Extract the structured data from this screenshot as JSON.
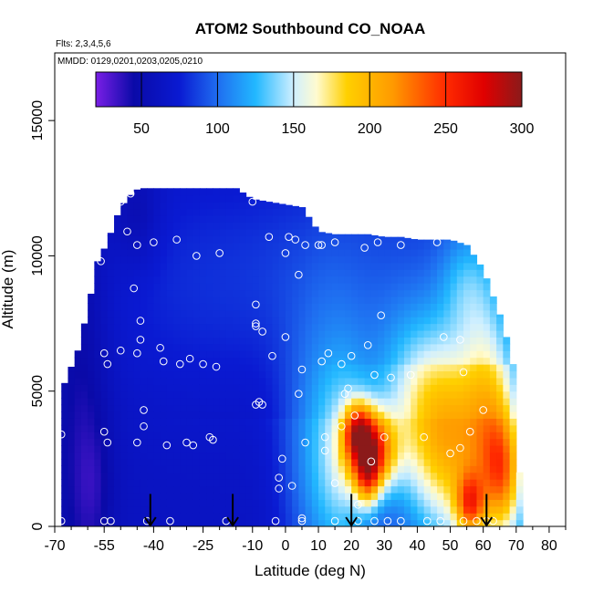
{
  "chart_data": {
    "type": "heatmap",
    "title": "ATOM2 Southbound CO_NOAA",
    "annotations": [
      "Flts: 2,3,4,5,6",
      "MMDD: 0129,0201,0203,0205,0210"
    ],
    "xlabel": "Latitude (deg N)",
    "ylabel": "Altitude (m)",
    "xlim": [
      -70,
      85
    ],
    "ylim": [
      0,
      17500
    ],
    "x_ticks": [
      -70,
      -55,
      -40,
      -25,
      -10,
      0,
      10,
      20,
      30,
      40,
      50,
      60,
      70,
      80
    ],
    "x_tick_labels": [
      "-70",
      "-55",
      "-40",
      "-25",
      "-10",
      "0",
      "10",
      "20",
      "30",
      "40",
      "50",
      "60",
      "70",
      "80"
    ],
    "x_minor_ticks": [
      -65,
      -60,
      -50,
      -45,
      -35,
      -30,
      -20,
      -15,
      -5,
      5,
      15,
      25,
      35,
      45,
      55,
      65,
      75,
      85
    ],
    "y_ticks": [
      0,
      5000,
      10000,
      15000
    ],
    "y_tick_labels": [
      "0",
      "5000",
      "10000",
      "15000"
    ],
    "colorbar": {
      "min": 20,
      "max": 300,
      "ticks": [
        50,
        100,
        150,
        200,
        250,
        300
      ],
      "tick_labels": [
        "50",
        "100",
        "150",
        "200",
        "250",
        "300"
      ],
      "colors": [
        [
          20,
          "#7a1fe6"
        ],
        [
          45,
          "#0a0aa8"
        ],
        [
          75,
          "#0a1ad2"
        ],
        [
          100,
          "#1f6df0"
        ],
        [
          125,
          "#22b8ff"
        ],
        [
          150,
          "#cfefff"
        ],
        [
          165,
          "#fffbd0"
        ],
        [
          185,
          "#ffd000"
        ],
        [
          215,
          "#ff9a00"
        ],
        [
          250,
          "#ff2a00"
        ],
        [
          275,
          "#e00000"
        ],
        [
          300,
          "#8b1a1a"
        ]
      ]
    },
    "coverage": {
      "top_lat": [
        -68,
        -63,
        -60,
        -57,
        -54,
        -52,
        -50,
        -48,
        -46,
        -44,
        -40,
        -36,
        -30,
        -25,
        -20,
        -15,
        -10,
        -5,
        0,
        5,
        10,
        15,
        20,
        25,
        30,
        35,
        40,
        45,
        50,
        55,
        60,
        63,
        66,
        69,
        70,
        72
      ],
      "top_alt": [
        5000,
        6500,
        8000,
        9800,
        10500,
        11200,
        11800,
        12100,
        12400,
        12500,
        12500,
        12500,
        12500,
        12500,
        12500,
        12500,
        12100,
        12000,
        11900,
        11800,
        10900,
        10800,
        10800,
        10800,
        10700,
        10700,
        10600,
        10600,
        10600,
        10400,
        9500,
        8500,
        7500,
        6000,
        3000,
        1000
      ],
      "bottom_alt": 0
    },
    "features": [
      {
        "lat": -62,
        "alt": 5000,
        "sx": 6,
        "sy": 6000,
        "v": -20
      },
      {
        "lat": -58,
        "alt": 1500,
        "sx": 4,
        "sy": 1800,
        "v": -12
      },
      {
        "lat": -45,
        "alt": 11500,
        "sx": 5,
        "sy": 1400,
        "v": -18
      },
      {
        "lat": -30,
        "alt": 9000,
        "sx": 25,
        "sy": 3500,
        "v": 18
      },
      {
        "lat": 15,
        "alt": 9500,
        "sx": 20,
        "sy": 3000,
        "v": 20
      },
      {
        "lat": 8,
        "alt": 2500,
        "sx": 7,
        "sy": 3500,
        "v": 40
      },
      {
        "lat": 18,
        "alt": 2500,
        "sx": 6,
        "sy": 3000,
        "v": 55
      },
      {
        "lat": 26,
        "alt": 2800,
        "sx": 5,
        "sy": 1000,
        "v": 150
      },
      {
        "lat": 22,
        "alt": 3600,
        "sx": 3,
        "sy": 700,
        "v": 90
      },
      {
        "lat": 25,
        "alt": 1800,
        "sx": 2.5,
        "sy": 800,
        "v": 70
      },
      {
        "lat": 40,
        "alt": 4500,
        "sx": 10,
        "sy": 2500,
        "v": 65
      },
      {
        "lat": 50,
        "alt": 3000,
        "sx": 8,
        "sy": 2500,
        "v": 75
      },
      {
        "lat": 56,
        "alt": 800,
        "sx": 3,
        "sy": 800,
        "v": 90
      },
      {
        "lat": 62,
        "alt": 4000,
        "sx": 6,
        "sy": 3000,
        "v": 80
      },
      {
        "lat": 66,
        "alt": 2000,
        "sx": 4,
        "sy": 1500,
        "v": 80
      },
      {
        "lat": 55,
        "alt": 9000,
        "sx": 6,
        "sy": 1500,
        "v": 35
      }
    ],
    "obs_points": [
      [
        -68,
        5800
      ],
      [
        -68,
        3400
      ],
      [
        -68,
        200
      ],
      [
        -57,
        11600
      ],
      [
        -56,
        9800
      ],
      [
        -55,
        6400
      ],
      [
        -54,
        6000
      ],
      [
        -55,
        3500
      ],
      [
        -54,
        3100
      ],
      [
        -55,
        200
      ],
      [
        -53,
        200
      ],
      [
        -50,
        12000
      ],
      [
        -47,
        12300
      ],
      [
        -45,
        6400
      ],
      [
        -46,
        8800
      ],
      [
        -45,
        10400
      ],
      [
        -44,
        7600
      ],
      [
        -44,
        6900
      ],
      [
        -45,
        3100
      ],
      [
        -43,
        4300
      ],
      [
        -43,
        3700
      ],
      [
        -42,
        200
      ],
      [
        -50,
        6500
      ],
      [
        -48,
        10900
      ],
      [
        -40,
        10500
      ],
      [
        -38,
        6600
      ],
      [
        -37,
        6100
      ],
      [
        -36,
        3000
      ],
      [
        -35,
        200
      ],
      [
        -33,
        10600
      ],
      [
        -32,
        6000
      ],
      [
        -30,
        3100
      ],
      [
        -29,
        6200
      ],
      [
        -28,
        3000
      ],
      [
        -27,
        10000
      ],
      [
        -25,
        6000
      ],
      [
        -23,
        3300
      ],
      [
        -22,
        3200
      ],
      [
        -21,
        5900
      ],
      [
        -20,
        10100
      ],
      [
        -18,
        200
      ],
      [
        -10,
        12000
      ],
      [
        -9,
        7500
      ],
      [
        -9,
        7400
      ],
      [
        -9,
        4500
      ],
      [
        -9,
        8200
      ],
      [
        -8,
        4600
      ],
      [
        -7,
        4500
      ],
      [
        -7,
        7200
      ],
      [
        -5,
        10700
      ],
      [
        -4,
        6300
      ],
      [
        -3,
        200
      ],
      [
        -2,
        1800
      ],
      [
        -2,
        1400
      ],
      [
        -1,
        2500
      ],
      [
        0,
        10100
      ],
      [
        0,
        7000
      ],
      [
        1,
        10700
      ],
      [
        2,
        1500
      ],
      [
        3,
        10600
      ],
      [
        4,
        9300
      ],
      [
        4,
        4900
      ],
      [
        5,
        5800
      ],
      [
        5,
        200
      ],
      [
        5,
        300
      ],
      [
        6,
        3100
      ],
      [
        6,
        10400
      ],
      [
        10,
        10400
      ],
      [
        11,
        10400
      ],
      [
        11,
        6100
      ],
      [
        12,
        3300
      ],
      [
        12,
        2800
      ],
      [
        13,
        6400
      ],
      [
        15,
        10500
      ],
      [
        15,
        1600
      ],
      [
        15,
        200
      ],
      [
        17,
        6000
      ],
      [
        17,
        3700
      ],
      [
        18,
        4900
      ],
      [
        19,
        5100
      ],
      [
        20,
        6300
      ],
      [
        21,
        4100
      ],
      [
        22,
        800
      ],
      [
        22,
        200
      ],
      [
        24,
        10300
      ],
      [
        25,
        6700
      ],
      [
        26,
        2400
      ],
      [
        27,
        5600
      ],
      [
        27,
        200
      ],
      [
        28,
        10500
      ],
      [
        29,
        7800
      ],
      [
        30,
        3300
      ],
      [
        31,
        200
      ],
      [
        32,
        5500
      ],
      [
        35,
        10400
      ],
      [
        35,
        200
      ],
      [
        38,
        5600
      ],
      [
        42,
        3300
      ],
      [
        43,
        200
      ],
      [
        46,
        10500
      ],
      [
        47,
        200
      ],
      [
        48,
        7000
      ],
      [
        50,
        2700
      ],
      [
        53,
        6900
      ],
      [
        53,
        2900
      ],
      [
        54,
        5700
      ],
      [
        54,
        200
      ],
      [
        56,
        3500
      ],
      [
        58,
        200
      ],
      [
        60,
        4300
      ],
      [
        61,
        200
      ],
      [
        63,
        200
      ]
    ],
    "arrows_lat": [
      -41,
      -16,
      20,
      61
    ],
    "grid": false
  }
}
